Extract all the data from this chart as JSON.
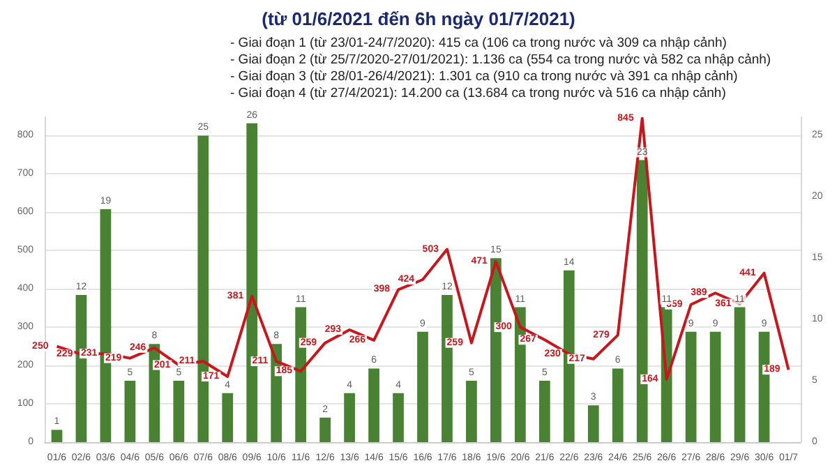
{
  "chart_data": {
    "type": "bar",
    "title": "(từ 01/6/2021 đến 6h ngày 01/7/2021)",
    "annotations": [
      "- Giai đoạn 1 (từ 23/01-24/7/2020): 415 ca (106 ca trong nước và 309 ca nhập cảnh)",
      "- Giai đoạn 2 (từ 25/7/2020-27/01/2021): 1.136 ca (554 ca trong nước và 582 ca nhập cảnh)",
      "- Giai đoạn 3 (từ 28/01-26/4/2021): 1.301 ca (910 ca trong nước và 391 ca nhập cảnh)",
      "- Giai đoạn 4 (từ 27/4/2021): 14.200 ca (13.684 ca trong nước và 516 ca nhập cảnh)"
    ],
    "categories": [
      "01/6",
      "02/6",
      "03/6",
      "04/6",
      "05/6",
      "06/6",
      "07/6",
      "08/6",
      "09/6",
      "10/6",
      "11/6",
      "12/6",
      "13/6",
      "14/6",
      "15/6",
      "16/6",
      "17/6",
      "18/6",
      "19/6",
      "20/6",
      "21/6",
      "22/6",
      "23/6",
      "24/6",
      "25/6",
      "26/6",
      "27/6",
      "28/6",
      "29/6",
      "30/6",
      "01/7"
    ],
    "series": [
      {
        "axis": "y2",
        "color": "#4a8233",
        "values": [
          1,
          12,
          19,
          5,
          8,
          5,
          25,
          4,
          26,
          8,
          11,
          2,
          4,
          6,
          4,
          9,
          12,
          5,
          15,
          11,
          5,
          14,
          3,
          6,
          23,
          11,
          9,
          9,
          11,
          9,
          null
        ]
      },
      {
        "type": "line",
        "color": "#c8161d",
        "values": [
          250,
          229,
          231,
          219,
          246,
          201,
          211,
          171,
          381,
          211,
          185,
          259,
          293,
          266,
          398,
          424,
          503,
          259,
          471,
          300,
          267,
          230,
          217,
          279,
          845,
          164,
          359,
          389,
          361,
          441,
          189
        ]
      }
    ],
    "ylim": [
      0,
      848
    ],
    "yticks": [
      0,
      100,
      200,
      300,
      400,
      500,
      600,
      700,
      800
    ],
    "y2lim": [
      0,
      26.5
    ],
    "y2ticks": [
      0,
      5,
      10,
      15,
      20,
      25
    ],
    "data_labels": true,
    "grid": "y",
    "marker": "none"
  }
}
